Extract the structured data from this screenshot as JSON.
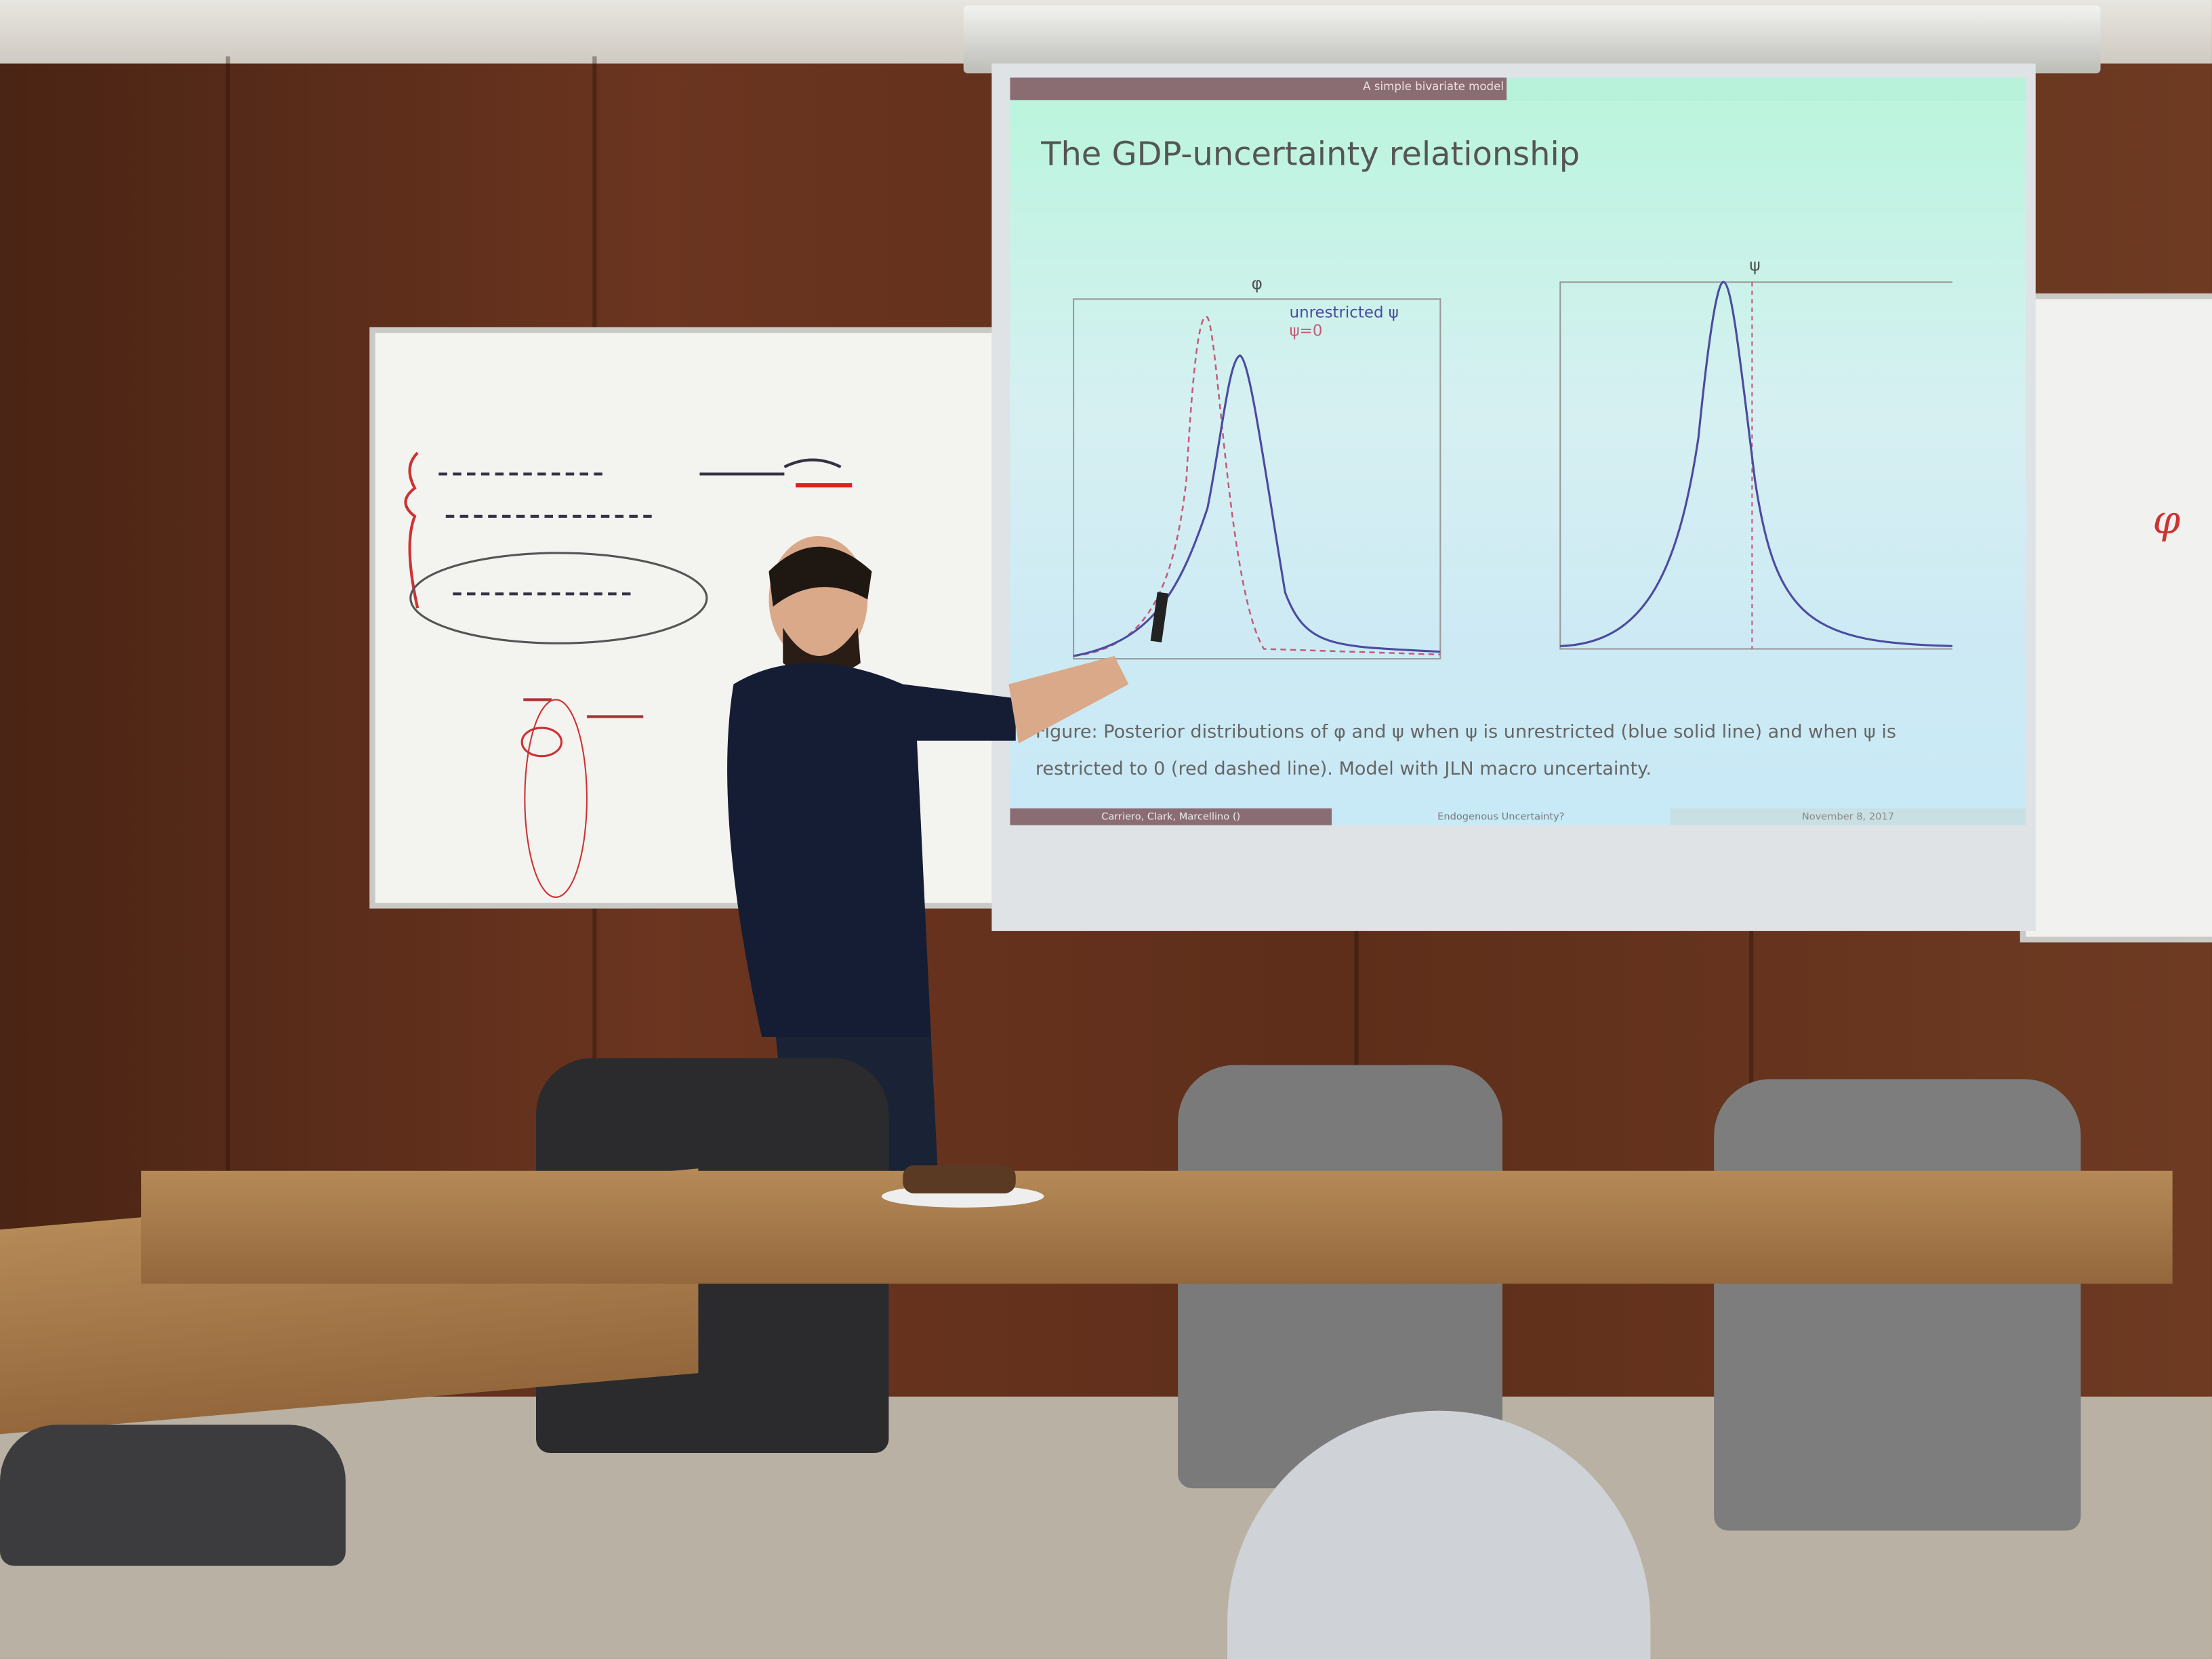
{
  "slide": {
    "header_section": "A simple bivariate model",
    "title": "The GDP-uncertainty relationship",
    "left_plot_title": "φ",
    "right_plot_title": "ψ",
    "legend": [
      "unrestricted ψ",
      "ψ=0"
    ],
    "caption": "Figure: Posterior distributions of φ and ψ when ψ is unrestricted (blue solid line) and when ψ is restricted to 0 (red dashed line). Model with JLN macro uncertainty.",
    "footer": {
      "authors": "Carriero, Clark, Marcellino ()",
      "short_title": "Endogenous Uncertainty?",
      "date": "November 8, 2017"
    },
    "colors": {
      "solid_line": "#4b4ba0",
      "dashed_line": "#c45a7a",
      "header_bar": "#8a6d72"
    }
  },
  "whiteboard": {
    "symbol": "φ"
  }
}
